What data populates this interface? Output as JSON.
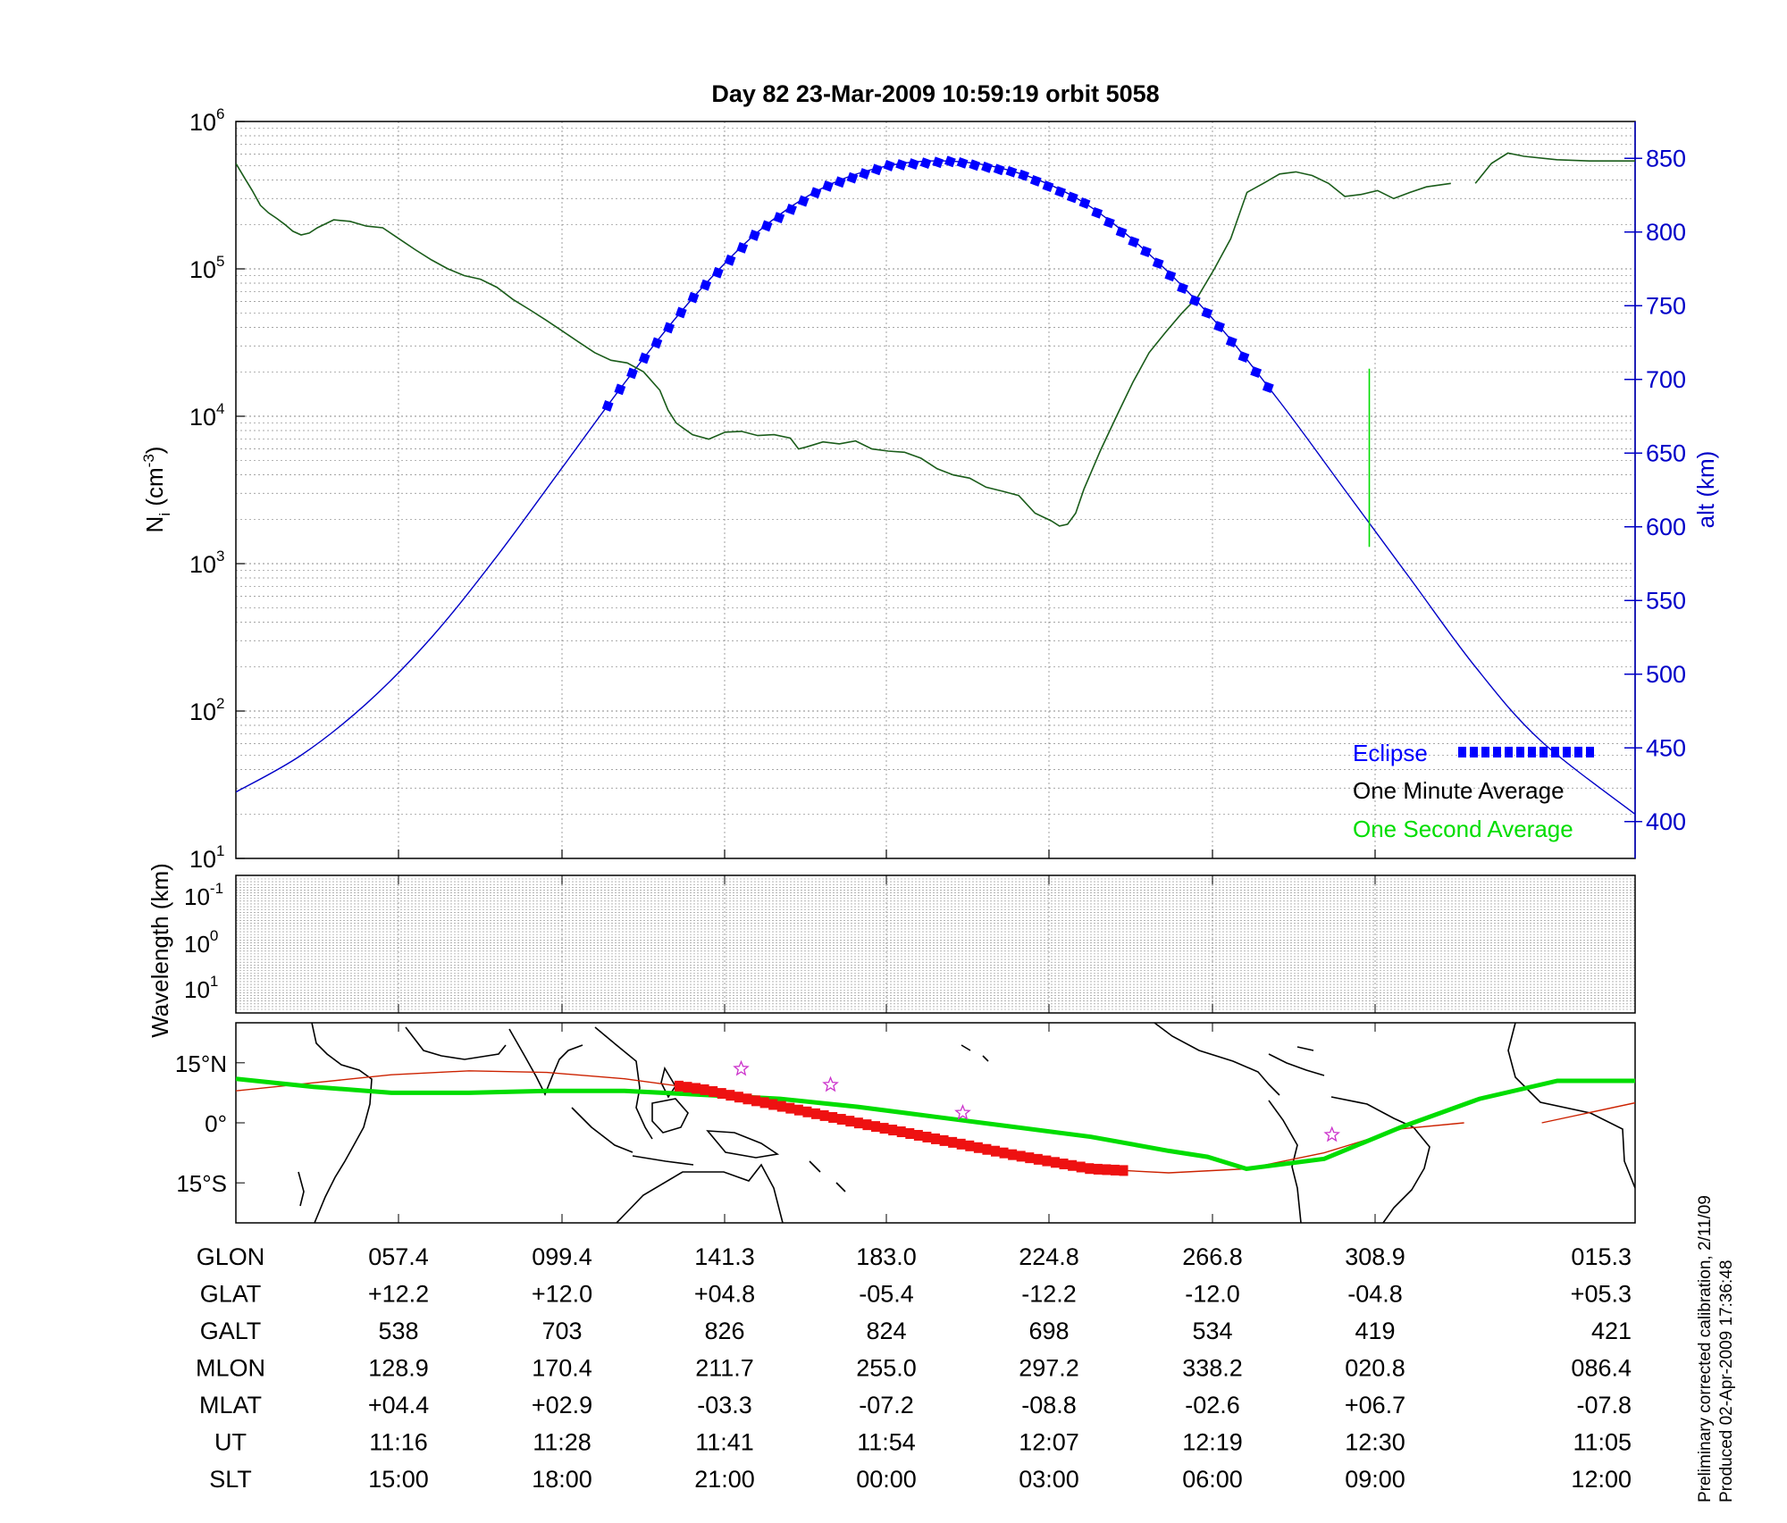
{
  "title": "Day 82  23-Mar-2009 10:59:19   orbit 5058",
  "footer": {
    "line1": "Preliminary corrected calibration, 2/11/09",
    "line2": "Produced 02-Apr-2009 17:36:48"
  },
  "colors": {
    "density": "#1a5c1a",
    "altitude": "#0000c8",
    "eclipse": "#0000ff",
    "one_second": "#00dd00",
    "ground_track": "#cc2200",
    "eclipse_track": "#ee1111",
    "stars": "#cc33cc",
    "grid": "#888888"
  },
  "chart_data": [
    {
      "type": "line",
      "name": "ion-density-and-altitude",
      "ylabel_main": "N",
      "ylabel_sub": "i",
      "ylabel_unit_open": " (cm",
      "ylabel_unit_exp": "-3",
      "ylabel_unit_close": ")",
      "y2label": "alt (km)",
      "yscale": "log",
      "ylim": [
        10,
        1000000
      ],
      "yticks": [
        {
          "base": "10",
          "exp": "1",
          "value": 10
        },
        {
          "base": "10",
          "exp": "2",
          "value": 100
        },
        {
          "base": "10",
          "exp": "3",
          "value": 1000
        },
        {
          "base": "10",
          "exp": "4",
          "value": 10000
        },
        {
          "base": "10",
          "exp": "5",
          "value": 100000
        },
        {
          "base": "10",
          "exp": "6",
          "value": 1000000
        }
      ],
      "y2lim": [
        375,
        875
      ],
      "y2ticks": [
        "400",
        "450",
        "500",
        "550",
        "600",
        "650",
        "700",
        "750",
        "800",
        "850"
      ],
      "xlim": [
        11.0,
        12.43
      ],
      "legend_position": "bottom-right",
      "legend": {
        "eclipse": "Eclipse",
        "one_minute": "One Minute Average",
        "one_second": "One Second Average"
      },
      "series": [
        {
          "name": "One Minute Average",
          "x": [
            11.0,
            11.0083,
            11.0167,
            11.025,
            11.0333,
            11.0417,
            11.05,
            11.0583,
            11.0667,
            11.075,
            11.0833,
            11.1,
            11.1167,
            11.1333,
            11.15,
            11.1667,
            11.1833,
            11.2,
            11.2167,
            11.2333,
            11.25,
            11.2667,
            11.2833,
            11.3,
            11.3167,
            11.3333,
            11.35,
            11.3667,
            11.3833,
            11.4,
            11.4167,
            11.4333,
            11.4417,
            11.45,
            11.4583,
            11.4667,
            11.4833,
            11.5,
            11.5167,
            11.5333,
            11.55,
            11.5667,
            11.575,
            11.5833,
            11.6,
            11.6167,
            11.6333,
            11.65,
            11.6667,
            11.6833,
            11.7,
            11.7167,
            11.7333,
            11.75,
            11.7667,
            11.7833,
            11.8,
            11.8167,
            11.8333,
            11.8417,
            11.85,
            11.8583,
            11.8667,
            11.8833,
            11.9,
            11.9167,
            11.9333,
            11.95,
            11.9667,
            11.9833,
            12.0,
            12.0167,
            12.0333,
            12.05,
            12.0667,
            12.0833,
            12.1,
            12.1167,
            12.1333,
            12.15,
            12.1667,
            12.1833,
            12.2,
            12.2167,
            12.2417
          ],
          "y": [
            520000,
            420000,
            340000,
            270000,
            240000,
            220000,
            200000,
            180000,
            170000,
            175000,
            190000,
            215000,
            210000,
            195000,
            190000,
            160000,
            135000,
            115000,
            100000,
            90000,
            85000,
            75000,
            62000,
            53000,
            45000,
            38000,
            32000,
            27000,
            24000,
            23000,
            20000,
            15000,
            11000,
            9000,
            8200,
            7500,
            7000,
            7800,
            7900,
            7400,
            7500,
            7100,
            6000,
            6200,
            6700,
            6500,
            6800,
            6000,
            5800,
            5700,
            5200,
            4400,
            4000,
            3800,
            3300,
            3100,
            2900,
            2200,
            1950,
            1800,
            1850,
            2200,
            3200,
            5800,
            10000,
            17000,
            27000,
            37000,
            50000,
            65000,
            100000,
            160000,
            330000,
            380000,
            440000,
            455000,
            430000,
            380000,
            310000,
            320000,
            340000,
            300000,
            330000,
            360000,
            380000
          ],
          "gaps": [
            [
              12.2417,
              12.2667
            ]
          ],
          "tail_x": [
            12.2667,
            12.2833,
            12.3,
            12.3167,
            12.35,
            12.3833,
            12.43
          ],
          "tail_y": [
            380000,
            520000,
            610000,
            580000,
            550000,
            540000,
            540000
          ]
        },
        {
          "name": "One Second Average",
          "x": [
            12.1583,
            12.1583
          ],
          "y": [
            1300,
            21000
          ]
        },
        {
          "name": "altitude",
          "axis": "right",
          "x": [
            11.0,
            11.0667,
            11.1333,
            11.2,
            11.2667,
            11.3333,
            11.4,
            11.4667,
            11.5333,
            11.6,
            11.6667,
            11.7333,
            11.8,
            11.8667,
            11.9333,
            12.0,
            12.0667,
            12.1333,
            12.2,
            12.2667,
            12.3333,
            12.43
          ],
          "y": [
            420,
            445,
            480,
            525,
            580,
            640,
            700,
            755,
            800,
            830,
            845,
            848,
            840,
            820,
            785,
            740,
            685,
            625,
            565,
            505,
            455,
            405
          ]
        },
        {
          "name": "Eclipse",
          "axis": "right",
          "x_start": 11.38,
          "x_end": 12.06,
          "x_step": 0.0125
        }
      ]
    },
    {
      "type": "heatmap",
      "name": "wavelength-spectrogram",
      "ylabel": "Wavelength (km)",
      "yticks": [
        {
          "base": "10",
          "exp": "-1"
        },
        {
          "base": "10",
          "exp": "0"
        },
        {
          "base": "10",
          "exp": "1"
        }
      ],
      "values": []
    },
    {
      "type": "line",
      "name": "ground-track-map",
      "xlim": [
        20,
        380
      ],
      "ylim": [
        -25,
        25
      ],
      "yticks": [
        {
          "value": 15,
          "label": "15°N"
        },
        {
          "value": 0,
          "label": "0°"
        },
        {
          "value": -15,
          "label": "15°S"
        }
      ],
      "series": [
        {
          "name": "geographic-track",
          "x": [
            20,
            40,
            60,
            80,
            100,
            120,
            140,
            160,
            180,
            200,
            220,
            240,
            260,
            280,
            300,
            320,
            336
          ],
          "y": [
            8,
            10,
            12,
            13,
            12.6,
            11,
            8.4,
            4.2,
            0,
            -4,
            -8,
            -11.5,
            -12.5,
            -11.5,
            -7.5,
            -1.5,
            0
          ],
          "tail_x": [
            356,
            380
          ],
          "tail_y": [
            0,
            5
          ]
        },
        {
          "name": "magnetic-track",
          "x": [
            20,
            40,
            60,
            80,
            100,
            120,
            140,
            160,
            180,
            200,
            220,
            240,
            260,
            270,
            280,
            300,
            320,
            340,
            360,
            380
          ],
          "y": [
            11,
            9,
            7.5,
            7.5,
            8,
            8,
            7,
            6,
            4,
            1.5,
            -1,
            -3.5,
            -7,
            -8.5,
            -11.5,
            -9,
            -1,
            6,
            10.5,
            10.5
          ]
        },
        {
          "name": "eclipse-track",
          "x_start": 134,
          "x_end": 249,
          "x_step": 2.2
        },
        {
          "name": "stars",
          "x": [
            150,
            173,
            207,
            302
          ],
          "y": [
            13.5,
            9.5,
            2.5,
            -3
          ]
        }
      ]
    }
  ],
  "ephemeris_table": {
    "rows": [
      {
        "label": "GLON",
        "values": [
          "057.4",
          "099.4",
          "141.3",
          "183.0",
          "224.8",
          "266.8",
          "308.9",
          "015.3"
        ]
      },
      {
        "label": "GLAT",
        "values": [
          "+12.2",
          "+12.0",
          "+04.8",
          "-05.4",
          "-12.2",
          "-12.0",
          "-04.8",
          "+05.3"
        ]
      },
      {
        "label": "GALT",
        "values": [
          "538",
          "703",
          "826",
          "824",
          "698",
          "534",
          "419",
          "421"
        ]
      },
      {
        "label": "MLON",
        "values": [
          "128.9",
          "170.4",
          "211.7",
          "255.0",
          "297.2",
          "338.2",
          "020.8",
          "086.4"
        ]
      },
      {
        "label": "MLAT",
        "values": [
          "+04.4",
          "+02.9",
          "-03.3",
          "-07.2",
          "-08.8",
          "-02.6",
          "+06.7",
          "-07.8"
        ]
      },
      {
        "label": "UT",
        "values": [
          "11:16",
          "11:28",
          "11:41",
          "11:54",
          "12:07",
          "12:19",
          "12:30",
          "11:05"
        ]
      },
      {
        "label": "SLT",
        "values": [
          "15:00",
          "18:00",
          "21:00",
          "00:00",
          "03:00",
          "06:00",
          "09:00",
          "12:00"
        ]
      }
    ]
  }
}
